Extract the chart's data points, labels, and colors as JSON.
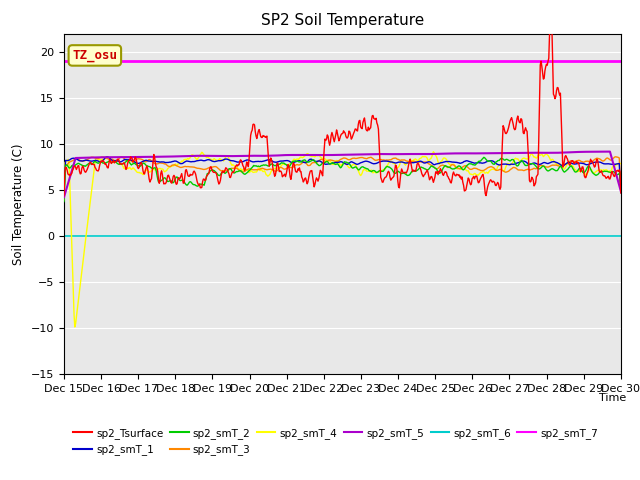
{
  "title": "SP2 Soil Temperature",
  "xlabel": "Time",
  "ylabel": "Soil Temperature (C)",
  "ylim": [
    -15,
    22
  ],
  "yticks": [
    -15,
    -10,
    -5,
    0,
    5,
    10,
    15,
    20
  ],
  "background_color": "#e8e8e8",
  "tz_label": "TZ_osu",
  "tz_label_color": "#cc0000",
  "tz_box_color": "#ffffcc",
  "tz_box_edge": "#999900",
  "colors": {
    "sp2_Tsurface": "#ff0000",
    "sp2_smT_1": "#0000cc",
    "sp2_smT_2": "#00cc00",
    "sp2_smT_3": "#ff8800",
    "sp2_smT_4": "#ffff00",
    "sp2_smT_5": "#aa00cc",
    "sp2_smT_6": "#00cccc",
    "sp2_smT_7": "#ff00ff"
  },
  "linewidths": {
    "sp2_Tsurface": 1.0,
    "sp2_smT_1": 1.0,
    "sp2_smT_2": 1.0,
    "sp2_smT_3": 1.0,
    "sp2_smT_4": 1.0,
    "sp2_smT_5": 1.5,
    "sp2_smT_6": 1.2,
    "sp2_smT_7": 2.0
  },
  "x_tick_labels": [
    "Dec 15",
    "Dec 16",
    "Dec 17",
    "Dec 18",
    "Dec 19",
    "Dec 20",
    "Dec 21",
    "Dec 22",
    "Dec 23",
    "Dec 24",
    "Dec 25",
    "Dec 26",
    "Dec 27",
    "Dec 28",
    "Dec 29",
    "Dec 30"
  ],
  "x_tick_positions": [
    0,
    1,
    2,
    3,
    4,
    5,
    6,
    7,
    8,
    9,
    10,
    11,
    12,
    13,
    14,
    15
  ]
}
